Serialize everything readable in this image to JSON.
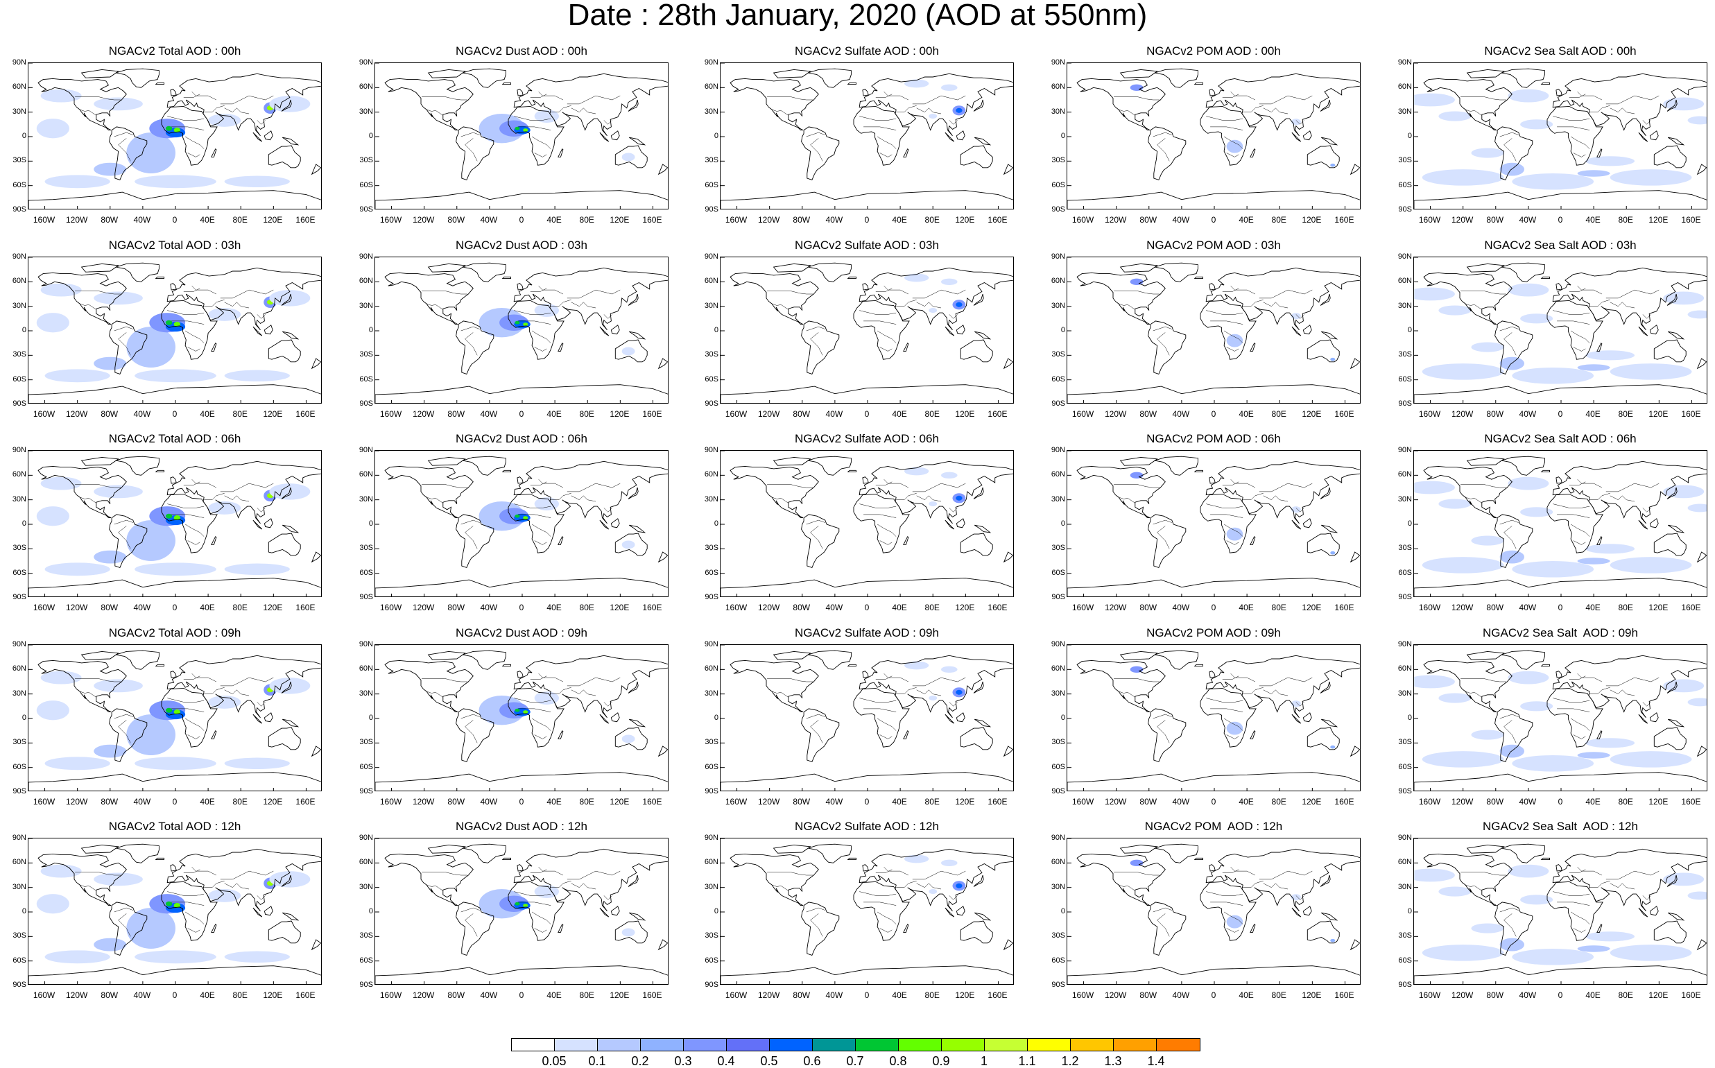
{
  "title": "Date : 28th January, 2020 (AOD at 550nm)",
  "panels": [
    {
      "title": "NGACv2 Total AOD : 00h",
      "species": "total",
      "hour": "00h"
    },
    {
      "title": "NGACv2 Dust AOD : 00h",
      "species": "dust",
      "hour": "00h"
    },
    {
      "title": "NGACv2 Sulfate AOD : 00h",
      "species": "sulfate",
      "hour": "00h"
    },
    {
      "title": "NGACv2 POM AOD : 00h",
      "species": "pom",
      "hour": "00h"
    },
    {
      "title": "NGACv2 Sea Salt AOD : 00h",
      "species": "seasalt",
      "hour": "00h"
    },
    {
      "title": "NGACv2 Total AOD : 03h",
      "species": "total",
      "hour": "03h"
    },
    {
      "title": "NGACv2 Dust AOD : 03h",
      "species": "dust",
      "hour": "03h"
    },
    {
      "title": "NGACv2 Sulfate AOD : 03h",
      "species": "sulfate",
      "hour": "03h"
    },
    {
      "title": "NGACv2 POM AOD : 03h",
      "species": "pom",
      "hour": "03h"
    },
    {
      "title": "NGACv2 Sea Salt AOD : 03h",
      "species": "seasalt",
      "hour": "03h"
    },
    {
      "title": "NGACv2 Total AOD : 06h",
      "species": "total",
      "hour": "06h"
    },
    {
      "title": "NGACv2 Dust AOD : 06h",
      "species": "dust",
      "hour": "06h"
    },
    {
      "title": "NGACv2 Sulfate AOD : 06h",
      "species": "sulfate",
      "hour": "06h"
    },
    {
      "title": "NGACv2 POM AOD : 06h",
      "species": "pom",
      "hour": "06h"
    },
    {
      "title": "NGACv2 Sea Salt AOD : 06h",
      "species": "seasalt",
      "hour": "06h"
    },
    {
      "title": "NGACv2 Total AOD : 09h",
      "species": "total",
      "hour": "09h"
    },
    {
      "title": "NGACv2 Dust AOD : 09h",
      "species": "dust",
      "hour": "09h"
    },
    {
      "title": "NGACv2 Sulfate AOD : 09h",
      "species": "sulfate",
      "hour": "09h"
    },
    {
      "title": "NGACv2 POM AOD : 09h",
      "species": "pom",
      "hour": "09h"
    },
    {
      "title": "NGACv2 Sea Salt  AOD : 09h",
      "species": "seasalt",
      "hour": "09h"
    },
    {
      "title": "NGACv2 Total AOD : 12h",
      "species": "total",
      "hour": "12h"
    },
    {
      "title": "NGACv2 Dust AOD : 12h",
      "species": "dust",
      "hour": "12h"
    },
    {
      "title": "NGACv2 Sulfate AOD : 12h",
      "species": "sulfate",
      "hour": "12h"
    },
    {
      "title": "NGACv2 POM  AOD : 12h",
      "species": "pom",
      "hour": "12h"
    },
    {
      "title": "NGACv2 Sea Salt  AOD : 12h",
      "species": "seasalt",
      "hour": "12h"
    }
  ],
  "lat_ticks": [
    "90N",
    "60N",
    "30N",
    "0",
    "30S",
    "60S",
    "90S"
  ],
  "lat_values": [
    90,
    60,
    30,
    0,
    -30,
    -60,
    -90
  ],
  "lon_ticks": [
    "160W",
    "120W",
    "80W",
    "40W",
    "0",
    "40E",
    "80E",
    "120E",
    "160E"
  ],
  "lon_values": [
    -160,
    -120,
    -80,
    -40,
    0,
    40,
    80,
    120,
    160
  ],
  "colorbar": {
    "levels": [
      "0.05",
      "0.1",
      "0.2",
      "0.3",
      "0.4",
      "0.5",
      "0.6",
      "0.7",
      "0.8",
      "0.9",
      "1",
      "1.1",
      "1.2",
      "1.3",
      "1.4"
    ],
    "colors": [
      "#ffffff",
      "#d6e2ff",
      "#b5c9ff",
      "#8fb2ff",
      "#7f96ff",
      "#6370f8",
      "#0063ff",
      "#009696",
      "#00c633",
      "#63ff00",
      "#96ff00",
      "#c6ff33",
      "#ffff00",
      "#ffc600",
      "#ffa000",
      "#ff7c00",
      "#ff1900"
    ]
  }
}
